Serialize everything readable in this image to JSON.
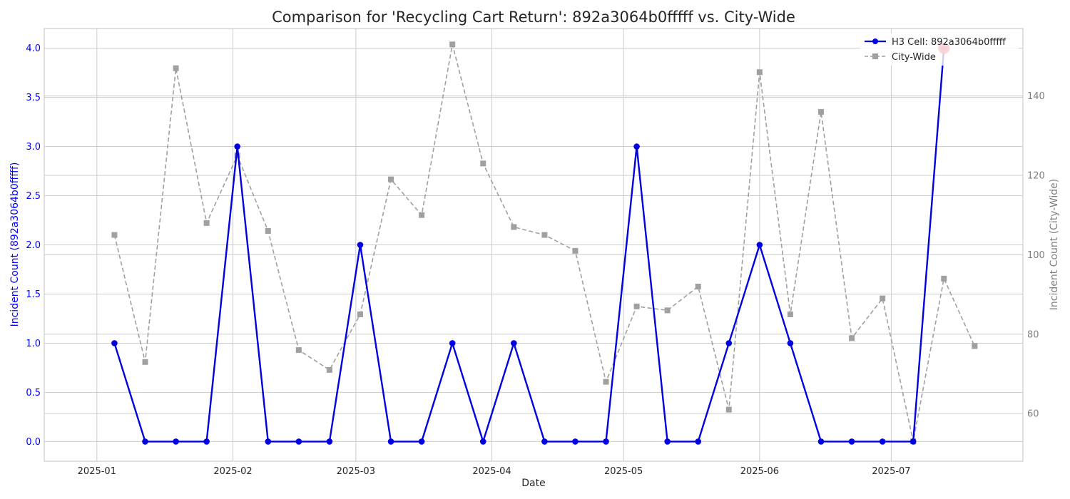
{
  "chart_data": {
    "type": "line",
    "title": "Comparison for 'Recycling Cart Return': 892a3064b0fffff vs. City-Wide",
    "xlabel": "Date",
    "ylabel_left": "Incident Count (892a3064b0fffff)",
    "ylabel_right": "Incident Count (City-Wide)",
    "x_ticks": [
      "2025-01",
      "2025-02",
      "2025-03",
      "2025-04",
      "2025-05",
      "2025-06",
      "2025-07"
    ],
    "x_tick_dates": [
      "2025-01-01",
      "2025-02-01",
      "2025-03-01",
      "2025-04-01",
      "2025-05-01",
      "2025-06-01",
      "2025-07-01"
    ],
    "xlim": [
      "2024-12-20",
      "2025-07-31"
    ],
    "ylim_left": [
      -0.2,
      4.2
    ],
    "ylim_right": [
      48,
      157
    ],
    "y_ticks_left": [
      "0.0",
      "0.5",
      "1.0",
      "1.5",
      "2.0",
      "2.5",
      "3.0",
      "3.5",
      "4.0"
    ],
    "y_ticks_right": [
      "60",
      "80",
      "100",
      "120",
      "140"
    ],
    "grid": true,
    "legend_position": "top-right",
    "series": [
      {
        "name": "H3 Cell: 892a3064b0fffff",
        "axis": "left",
        "color": "#0000e0",
        "marker": "circle",
        "x": [
          "2025-01-05",
          "2025-01-12",
          "2025-01-19",
          "2025-01-26",
          "2025-02-02",
          "2025-02-09",
          "2025-02-16",
          "2025-02-23",
          "2025-03-02",
          "2025-03-09",
          "2025-03-16",
          "2025-03-23",
          "2025-03-30",
          "2025-04-06",
          "2025-04-13",
          "2025-04-20",
          "2025-04-27",
          "2025-05-04",
          "2025-05-11",
          "2025-05-18",
          "2025-05-25",
          "2025-06-01",
          "2025-06-08",
          "2025-06-15",
          "2025-06-22",
          "2025-06-29",
          "2025-07-06",
          "2025-07-13"
        ],
        "values": [
          1,
          0,
          0,
          0,
          3,
          0,
          0,
          0,
          2,
          0,
          0,
          1,
          0,
          1,
          0,
          0,
          0,
          3,
          0,
          0,
          1,
          2,
          1,
          0,
          0,
          0,
          0,
          4
        ]
      },
      {
        "name": "City-Wide",
        "axis": "right",
        "color": "#a0a0a0",
        "marker": "square",
        "x": [
          "2025-01-05",
          "2025-01-12",
          "2025-01-19",
          "2025-01-26",
          "2025-02-02",
          "2025-02-09",
          "2025-02-16",
          "2025-02-23",
          "2025-03-02",
          "2025-03-09",
          "2025-03-16",
          "2025-03-23",
          "2025-03-30",
          "2025-04-06",
          "2025-04-13",
          "2025-04-20",
          "2025-04-27",
          "2025-05-04",
          "2025-05-11",
          "2025-05-18",
          "2025-05-25",
          "2025-06-01",
          "2025-06-08",
          "2025-06-15",
          "2025-06-22",
          "2025-06-29",
          "2025-07-06",
          "2025-07-13",
          "2025-07-20"
        ],
        "values": [
          105,
          73,
          147,
          108,
          125,
          106,
          76,
          71,
          85,
          119,
          110,
          153,
          123,
          107,
          105,
          101,
          68,
          87,
          86,
          92,
          61,
          146,
          85,
          136,
          79,
          89,
          53,
          94,
          77
        ]
      }
    ],
    "highlight": {
      "series": "H3 Cell: 892a3064b0fffff",
      "x": "2025-07-13",
      "value": 4,
      "color": "#e8121b"
    },
    "colors": {
      "left_axis": "#0000ff",
      "right_axis": "#808080",
      "grid": "#cccccc"
    }
  }
}
